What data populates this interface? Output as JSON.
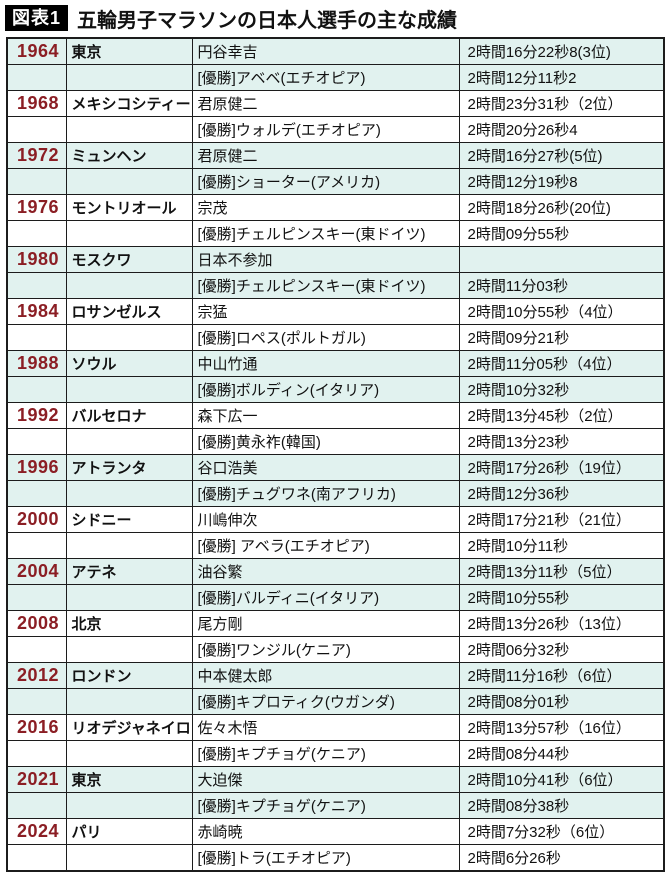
{
  "title": {
    "badge": "図表1",
    "text": "五輪男子マラソンの日本人選手の主な成績"
  },
  "colors": {
    "year_text": "#8b1e24",
    "row_tint": "#e1f2ef",
    "border": "#1c1c1c",
    "badge_bg": "#000000",
    "badge_fg": "#ffffff"
  },
  "table": {
    "games": [
      {
        "year": "1964",
        "city": "東京",
        "athlete": "円谷幸吉",
        "athlete_time": "2時間16分22秒8(3位)",
        "winner": "[優勝]アベベ(エチオピア)",
        "winner_time": "2時間12分11秒2",
        "tinted": true
      },
      {
        "year": "1968",
        "city": "メキシコシティー",
        "athlete": "君原健二",
        "athlete_time": "2時間23分31秒（2位）",
        "winner": "[優勝]ウォルデ(エチオピア)",
        "winner_time": "2時間20分26秒4",
        "tinted": false
      },
      {
        "year": "1972",
        "city": "ミュンヘン",
        "athlete": "君原健二",
        "athlete_time": "2時間16分27秒(5位)",
        "winner": "[優勝]ショーター(アメリカ)",
        "winner_time": "2時間12分19秒8",
        "tinted": true
      },
      {
        "year": "1976",
        "city": "モントリオール",
        "athlete": "宗茂",
        "athlete_time": "2時間18分26秒(20位)",
        "winner": "[優勝]チェルピンスキー(東ドイツ)",
        "winner_time": "2時間09分55秒",
        "tinted": false
      },
      {
        "year": "1980",
        "city": "モスクワ",
        "athlete": "日本不参加",
        "athlete_time": "",
        "winner": "[優勝]チェルピンスキー(東ドイツ)",
        "winner_time": "2時間11分03秒",
        "tinted": true
      },
      {
        "year": "1984",
        "city": "ロサンゼルス",
        "athlete": "宗猛",
        "athlete_time": "2時間10分55秒（4位）",
        "winner": "[優勝]ロペス(ポルトガル)",
        "winner_time": "2時間09分21秒",
        "tinted": false
      },
      {
        "year": "1988",
        "city": "ソウル",
        "athlete": "中山竹通",
        "athlete_time": "2時間11分05秒（4位）",
        "winner": "[優勝]ボルディン(イタリア)",
        "winner_time": "2時間10分32秒",
        "tinted": true
      },
      {
        "year": "1992",
        "city": "バルセロナ",
        "athlete": "森下広一",
        "athlete_time": "2時間13分45秒（2位）",
        "winner": "[優勝]黄永祚(韓国)",
        "winner_time": "2時間13分23秒",
        "tinted": false
      },
      {
        "year": "1996",
        "city": "アトランタ",
        "athlete": "谷口浩美",
        "athlete_time": "2時間17分26秒（19位）",
        "winner": "[優勝]チュグワネ(南アフリカ)",
        "winner_time": "2時間12分36秒",
        "tinted": true
      },
      {
        "year": "2000",
        "city": "シドニー",
        "athlete": "川嶋伸次",
        "athlete_time": "2時間17分21秒（21位）",
        "winner": "[優勝] アベラ(エチオピア)",
        "winner_time": "2時間10分11秒",
        "tinted": false
      },
      {
        "year": "2004",
        "city": "アテネ",
        "athlete": "油谷繁",
        "athlete_time": "2時間13分11秒（5位）",
        "winner": "[優勝]バルディニ(イタリア)",
        "winner_time": "2時間10分55秒",
        "tinted": true
      },
      {
        "year": "2008",
        "city": "北京",
        "athlete": "尾方剛",
        "athlete_time": "2時間13分26秒（13位）",
        "winner": "[優勝]ワンジル(ケニア)",
        "winner_time": "2時間06分32秒",
        "tinted": false
      },
      {
        "year": "2012",
        "city": "ロンドン",
        "athlete": "中本健太郎",
        "athlete_time": "2時間11分16秒（6位）",
        "winner": "[優勝]キプロティク(ウガンダ)",
        "winner_time": "2時間08分01秒",
        "tinted": true
      },
      {
        "year": "2016",
        "city": "リオデジャネイロ",
        "athlete": "佐々木悟",
        "athlete_time": "2時間13分57秒（16位）",
        "winner": "[優勝]キプチョゲ(ケニア)",
        "winner_time": "2時間08分44秒",
        "tinted": false
      },
      {
        "year": "2021",
        "city": "東京",
        "athlete": "大迫傑",
        "athlete_time": "2時間10分41秒（6位）",
        "winner": "[優勝]キプチョゲ(ケニア)",
        "winner_time": "2時間08分38秒",
        "tinted": true
      },
      {
        "year": "2024",
        "city": "パリ",
        "athlete": "赤崎暁",
        "athlete_time": "2時間7分32秒（6位）",
        "winner": "[優勝]トラ(エチオピア)",
        "winner_time": "2時間6分26秒",
        "tinted": false
      }
    ]
  }
}
